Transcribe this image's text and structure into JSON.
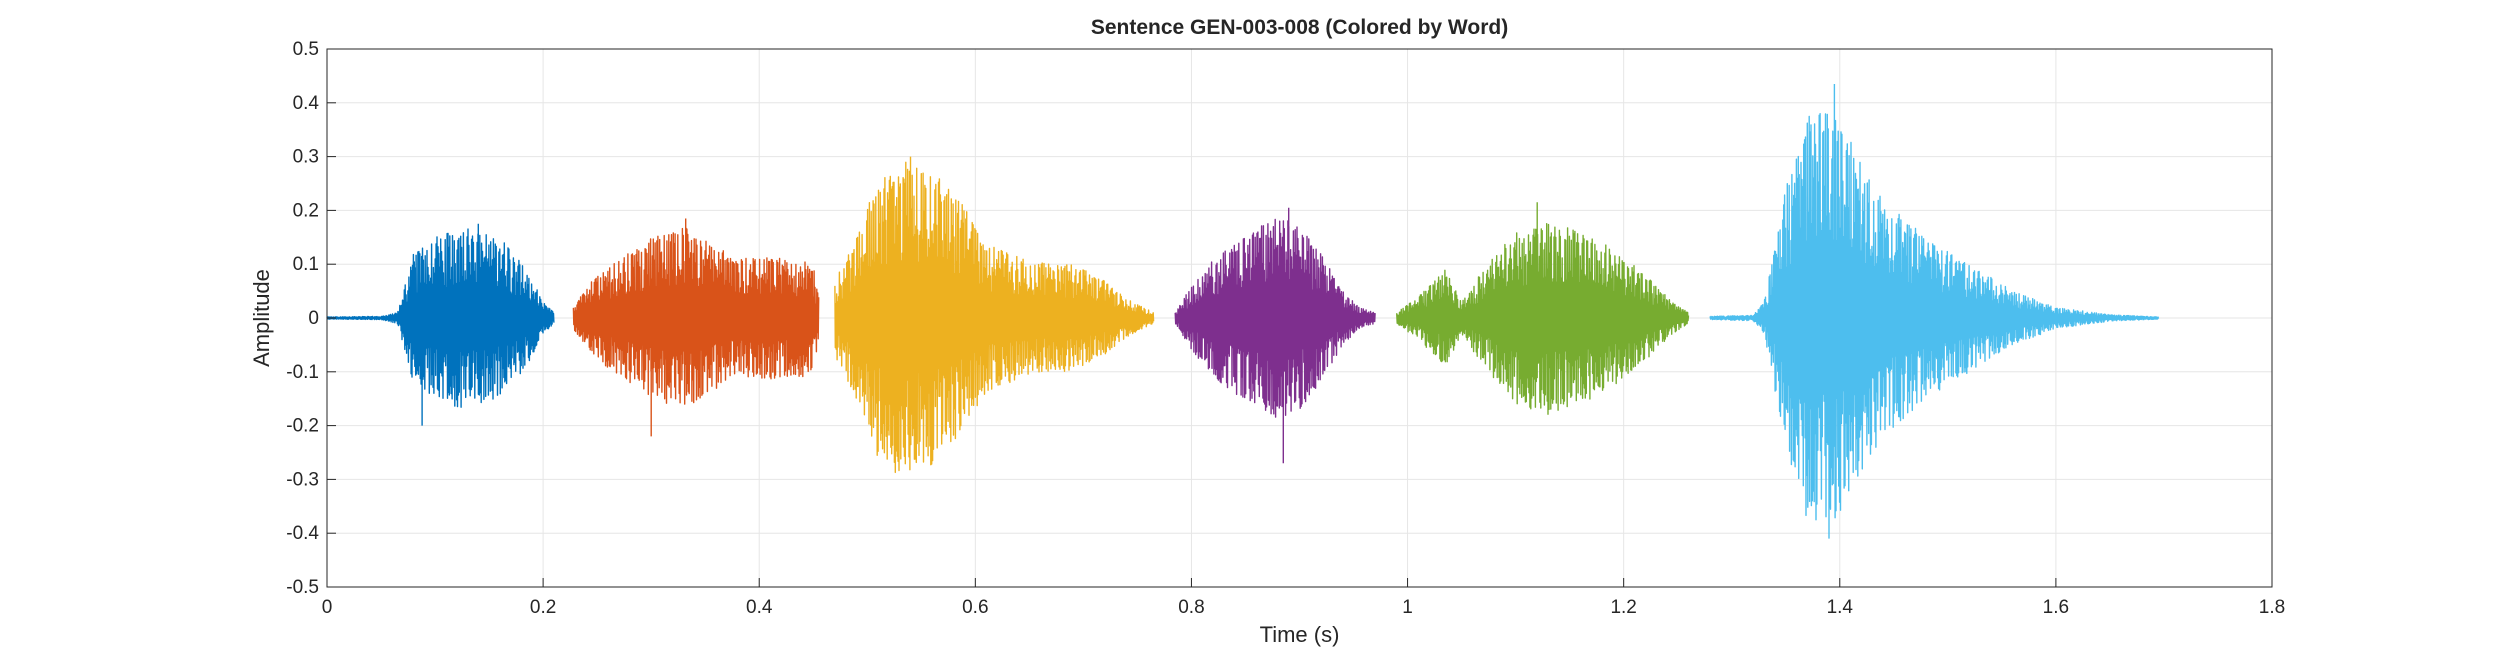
{
  "chart_data": {
    "type": "line",
    "title": "Sentence GEN-003-008 (Colored by Word)",
    "xlabel": "Time (s)",
    "ylabel": "Amplitude",
    "xlim": [
      0,
      1.8
    ],
    "ylim": [
      -0.5,
      0.5
    ],
    "xticks": [
      0,
      0.2,
      0.4,
      0.6,
      0.8,
      1,
      1.2,
      1.4,
      1.6,
      1.8
    ],
    "xtick_labels": [
      "0",
      "0.2",
      "0.4",
      "0.6",
      "0.8",
      "1",
      "1.2",
      "1.4",
      "1.6",
      "1.8"
    ],
    "yticks": [
      -0.5,
      -0.4,
      -0.3,
      -0.2,
      -0.1,
      0,
      0.1,
      0.2,
      0.3,
      0.4,
      0.5
    ],
    "ytick_labels": [
      "-0.5",
      "-0.4",
      "-0.3",
      "-0.2",
      "-0.1",
      "0",
      "0.1",
      "0.2",
      "0.3",
      "0.4",
      "0.5"
    ],
    "grid": true,
    "series": [
      {
        "color": "#0072BD",
        "t_start": 0.0,
        "t_end": 0.21,
        "envelope": [
          [
            0.0,
            0.002
          ],
          [
            0.05,
            0.003
          ],
          [
            0.065,
            0.01
          ],
          [
            0.08,
            0.12
          ],
          [
            0.1,
            0.15
          ],
          [
            0.125,
            0.17
          ],
          [
            0.145,
            0.16
          ],
          [
            0.165,
            0.14
          ],
          [
            0.185,
            0.09
          ],
          [
            0.2,
            0.03
          ],
          [
            0.21,
            0.01
          ]
        ],
        "peaks": [
          [
            0.088,
            -0.2
          ],
          [
            0.14,
            0.175
          ]
        ]
      },
      {
        "color": "#D95319",
        "t_start": 0.228,
        "t_end": 0.455,
        "envelope": [
          [
            0.228,
            0.02
          ],
          [
            0.245,
            0.07
          ],
          [
            0.27,
            0.11
          ],
          [
            0.3,
            0.15
          ],
          [
            0.33,
            0.17
          ],
          [
            0.355,
            0.14
          ],
          [
            0.38,
            0.11
          ],
          [
            0.41,
            0.115
          ],
          [
            0.44,
            0.11
          ],
          [
            0.45,
            0.1
          ],
          [
            0.455,
            0.04
          ]
        ],
        "peaks": [
          [
            0.3,
            -0.22
          ],
          [
            0.332,
            0.185
          ]
        ]
      },
      {
        "color": "#EDB120",
        "t_start": 0.47,
        "t_end": 0.765,
        "envelope": [
          [
            0.47,
            0.07
          ],
          [
            0.49,
            0.15
          ],
          [
            0.51,
            0.26
          ],
          [
            0.53,
            0.295
          ],
          [
            0.56,
            0.28
          ],
          [
            0.585,
            0.22
          ],
          [
            0.61,
            0.14
          ],
          [
            0.65,
            0.105
          ],
          [
            0.69,
            0.1
          ],
          [
            0.72,
            0.07
          ],
          [
            0.745,
            0.03
          ],
          [
            0.765,
            0.01
          ]
        ],
        "peaks": [
          [
            0.54,
            0.3
          ],
          [
            0.56,
            -0.235
          ]
        ]
      },
      {
        "color": "#7E2F8E",
        "t_start": 0.785,
        "t_end": 0.97,
        "envelope": [
          [
            0.785,
            0.01
          ],
          [
            0.8,
            0.06
          ],
          [
            0.825,
            0.12
          ],
          [
            0.855,
            0.16
          ],
          [
            0.88,
            0.19
          ],
          [
            0.9,
            0.17
          ],
          [
            0.92,
            0.12
          ],
          [
            0.94,
            0.05
          ],
          [
            0.955,
            0.02
          ],
          [
            0.97,
            0.01
          ]
        ],
        "peaks": [
          [
            0.885,
            -0.27
          ],
          [
            0.89,
            0.205
          ]
        ]
      },
      {
        "color": "#77AC30",
        "t_start": 0.99,
        "t_end": 1.26,
        "envelope": [
          [
            0.99,
            0.01
          ],
          [
            1.01,
            0.04
          ],
          [
            1.035,
            0.09
          ],
          [
            1.05,
            0.03
          ],
          [
            1.07,
            0.09
          ],
          [
            1.1,
            0.16
          ],
          [
            1.13,
            0.18
          ],
          [
            1.16,
            0.16
          ],
          [
            1.19,
            0.13
          ],
          [
            1.22,
            0.08
          ],
          [
            1.245,
            0.03
          ],
          [
            1.26,
            0.01
          ]
        ],
        "peaks": [
          [
            1.12,
            0.215
          ],
          [
            1.13,
            -0.18
          ]
        ]
      },
      {
        "color": "#4DBEEE",
        "t_start": 1.28,
        "t_end": 1.695,
        "envelope": [
          [
            1.28,
            0.003
          ],
          [
            1.32,
            0.005
          ],
          [
            1.33,
            0.03
          ],
          [
            1.35,
            0.24
          ],
          [
            1.37,
            0.38
          ],
          [
            1.39,
            0.4
          ],
          [
            1.41,
            0.33
          ],
          [
            1.44,
            0.22
          ],
          [
            1.48,
            0.15
          ],
          [
            1.52,
            0.1
          ],
          [
            1.56,
            0.05
          ],
          [
            1.6,
            0.02
          ],
          [
            1.65,
            0.006
          ],
          [
            1.695,
            0.002
          ]
        ],
        "peaks": [
          [
            1.395,
            0.435
          ],
          [
            1.39,
            -0.41
          ]
        ]
      }
    ]
  }
}
